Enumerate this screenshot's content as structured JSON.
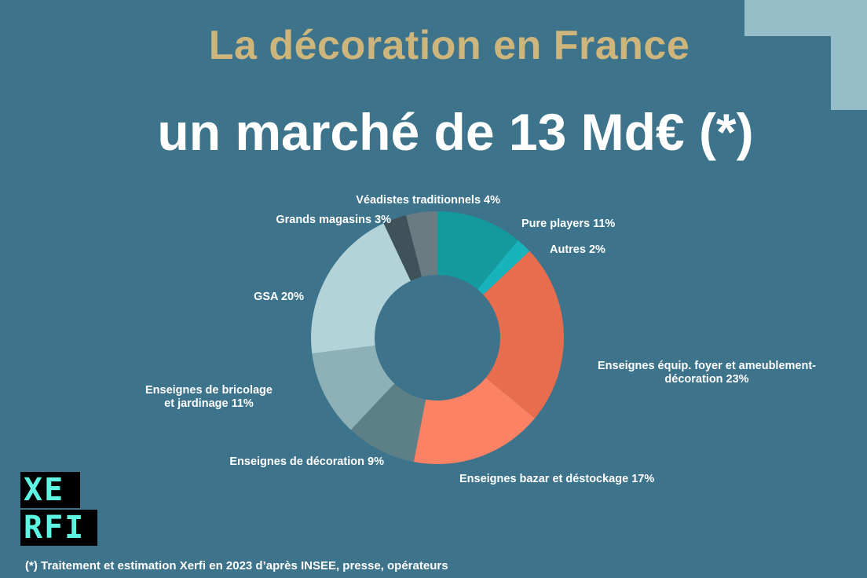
{
  "header": {
    "title": "La décoration en France",
    "subtitle": "un marché de 13 Md€ (*)"
  },
  "footnote": "(*) Traitement et estimation Xerfi en 2023 d’après INSEE, presse, opérateurs",
  "logo": {
    "line1": "XE",
    "line2": "RFI"
  },
  "colors": {
    "background": "#3d748b",
    "title": "#cdb57c",
    "accent_block": "#96bdc8",
    "logo_text": "#5ef4e2"
  },
  "chart_data": {
    "type": "pie",
    "donut": true,
    "unit": "%",
    "slices": [
      {
        "label": "Pure players 11%",
        "value": 11,
        "color": "#13999e"
      },
      {
        "label": "Autres 2%",
        "value": 2,
        "color": "#19b3bb"
      },
      {
        "label": "Enseignes équip. foyer et ameublement-décoration 23%",
        "label_lines": [
          "Enseignes équip. foyer et ameublement-",
          "décoration 23%"
        ],
        "value": 23,
        "color": "#e76d4e"
      },
      {
        "label": "Enseignes bazar et déstockage 17%",
        "value": 17,
        "color": "#fb8265"
      },
      {
        "label": "Enseignes de décoration 9%",
        "value": 9,
        "color": "#5c7f88"
      },
      {
        "label": "Enseignes de bricolage et jardinage 11%",
        "label_lines": [
          "Enseignes de bricolage",
          "et jardinage 11%"
        ],
        "value": 11,
        "color": "#8eb1b8"
      },
      {
        "label": "GSA 20%",
        "value": 20,
        "color": "#b3d3d9"
      },
      {
        "label": "Grands magasins 3%",
        "value": 3,
        "color": "#3f5259"
      },
      {
        "label": "Véadistes traditionnels 4%",
        "value": 4,
        "color": "#687c82"
      }
    ]
  }
}
